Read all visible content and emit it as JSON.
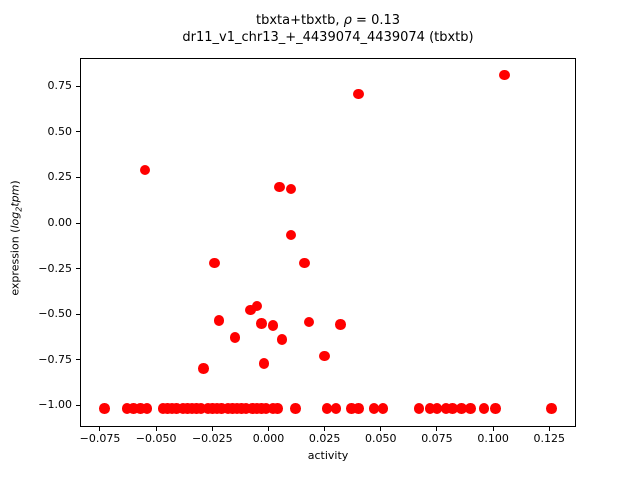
{
  "title": {
    "pre": "tbxta+tbxtb, ",
    "rho": "ρ",
    "post": " = 0.13"
  },
  "subtitle": "dr11_v1_chr13_+_4439074_4439074 (tbxtb)",
  "xlabel": "activity",
  "ylabel": {
    "pre": "expression (",
    "log": "log",
    "sub": "2",
    "tpm": "tpm",
    "post": ")"
  },
  "chart_data": {
    "type": "scatter",
    "title": "tbxta+tbxtb, ρ = 0.13",
    "subtitle": "dr11_v1_chr13_+_4439074_4439074 (tbxtb)",
    "xlabel": "activity",
    "ylabel": "expression (log2 tpm)",
    "xlim": [
      -0.0839,
      0.1369
    ],
    "ylim": [
      -1.118,
      0.905
    ],
    "grid": false,
    "legend": null,
    "marker_color": "#ff0000",
    "marker_diameter_px": 10.5,
    "xticks": [
      -0.075,
      -0.05,
      -0.025,
      0,
      0.025,
      0.05,
      0.075,
      0.1,
      0.125
    ],
    "xtick_labels": [
      "−0.075",
      "−0.050",
      "−0.025",
      "0.000",
      "0.025",
      "0.050",
      "0.075",
      "0.100",
      "0.125"
    ],
    "yticks": [
      0.75,
      0.5,
      0.25,
      0,
      -0.25,
      -0.5,
      -0.75,
      -1
    ],
    "ytick_labels": [
      "0.75",
      "0.50",
      "0.25",
      "0.00",
      "−0.25",
      "−0.50",
      "−0.75",
      "−1.00"
    ],
    "points": [
      [
        -0.055,
        0.291
      ],
      [
        0.04,
        0.709
      ],
      [
        0.105,
        0.812
      ],
      [
        0.005,
        0.197
      ],
      [
        0.01,
        0.187
      ],
      [
        0.01,
        -0.065
      ],
      [
        -0.024,
        -0.22
      ],
      [
        0.016,
        -0.22
      ],
      [
        -0.022,
        -0.534
      ],
      [
        -0.008,
        -0.476
      ],
      [
        -0.005,
        -0.454
      ],
      [
        -0.003,
        -0.55
      ],
      [
        0.002,
        -0.561
      ],
      [
        -0.015,
        -0.628
      ],
      [
        0.006,
        -0.639
      ],
      [
        0.018,
        -0.542
      ],
      [
        0.032,
        -0.557
      ],
      [
        0.025,
        -0.729
      ],
      [
        -0.002,
        -0.769
      ],
      [
        -0.029,
        -0.796
      ],
      [
        -0.073,
        -1.016
      ],
      [
        -0.063,
        -1.016
      ],
      [
        -0.06,
        -1.016
      ],
      [
        -0.057,
        -1.016
      ],
      [
        -0.054,
        -1.016
      ],
      [
        -0.047,
        -1.016
      ],
      [
        -0.045,
        -1.016
      ],
      [
        -0.043,
        -1.016
      ],
      [
        -0.041,
        -1.016
      ],
      [
        -0.038,
        -1.016
      ],
      [
        -0.036,
        -1.016
      ],
      [
        -0.034,
        -1.016
      ],
      [
        -0.032,
        -1.016
      ],
      [
        -0.03,
        -1.016
      ],
      [
        -0.027,
        -1.016
      ],
      [
        -0.025,
        -1.016
      ],
      [
        -0.023,
        -1.016
      ],
      [
        -0.021,
        -1.016
      ],
      [
        -0.018,
        -1.016
      ],
      [
        -0.016,
        -1.016
      ],
      [
        -0.014,
        -1.016
      ],
      [
        -0.012,
        -1.016
      ],
      [
        -0.01,
        -1.016
      ],
      [
        -0.007,
        -1.016
      ],
      [
        -0.005,
        -1.016
      ],
      [
        -0.003,
        -1.016
      ],
      [
        -0.001,
        -1.016
      ],
      [
        0.002,
        -1.016
      ],
      [
        0.004,
        -1.016
      ],
      [
        0.012,
        -1.016
      ],
      [
        0.026,
        -1.016
      ],
      [
        0.03,
        -1.016
      ],
      [
        0.037,
        -1.016
      ],
      [
        0.04,
        -1.016
      ],
      [
        0.047,
        -1.016
      ],
      [
        0.051,
        -1.016
      ],
      [
        0.067,
        -1.016
      ],
      [
        0.072,
        -1.016
      ],
      [
        0.075,
        -1.016
      ],
      [
        0.079,
        -1.016
      ],
      [
        0.082,
        -1.016
      ],
      [
        0.086,
        -1.016
      ],
      [
        0.09,
        -1.016
      ],
      [
        0.096,
        -1.016
      ],
      [
        0.101,
        -1.016
      ],
      [
        0.126,
        -1.016
      ]
    ]
  }
}
